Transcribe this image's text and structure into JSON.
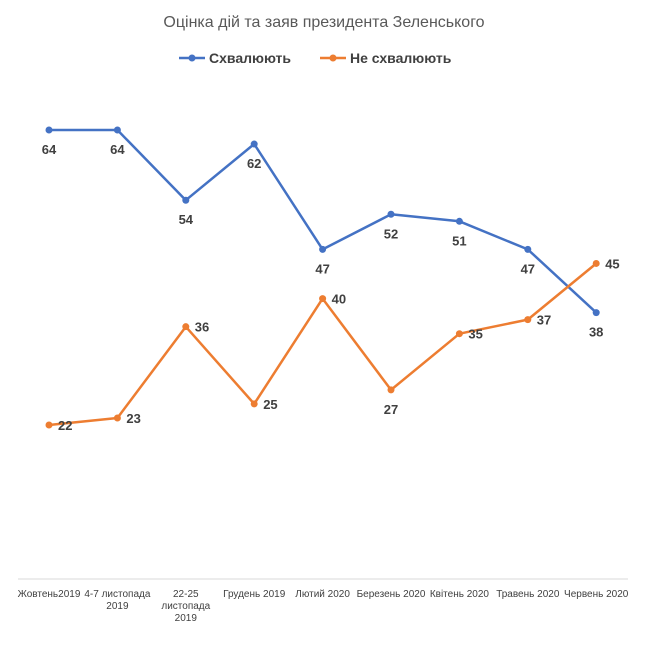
{
  "chart_data": {
    "type": "line",
    "title": "Оцінка дій та заяв президента Зеленського",
    "xlabel": "",
    "ylabel": "",
    "ylim": [
      0,
      80
    ],
    "grid": false,
    "legend_position": "top",
    "categories": [
      "Жовтень2019",
      "4-7 листопада 2019",
      "22-25 листопада 2019",
      "Грудень 2019",
      "Лютий 2020",
      "Березень 2020",
      "Квітень 2020",
      "Травень 2020",
      "Червень 2020"
    ],
    "series": [
      {
        "name": "Схвалюють",
        "color": "#4472C4",
        "values": [
          64,
          64,
          54,
          62,
          47,
          52,
          51,
          47,
          38
        ]
      },
      {
        "name": "Не схвалюють",
        "color": "#ED7D31",
        "values": [
          22,
          23,
          36,
          25,
          40,
          27,
          35,
          37,
          45
        ]
      }
    ]
  }
}
